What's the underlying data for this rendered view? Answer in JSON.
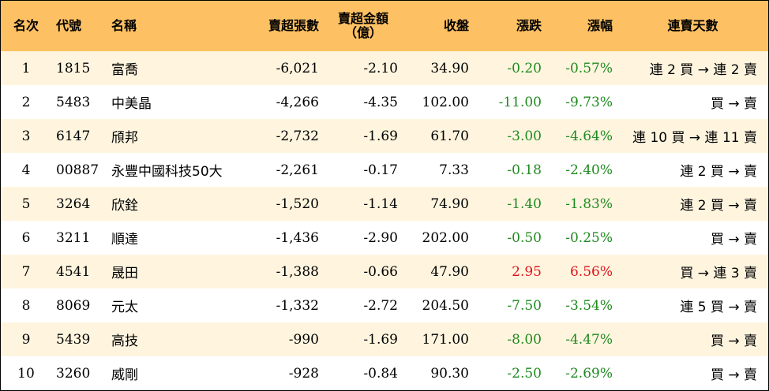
{
  "headers": {
    "rank": "名次",
    "code": "代號",
    "name": "名稱",
    "net_sell_lots": "賣超張數",
    "net_sell_amount_line1": "賣超金額",
    "net_sell_amount_line2": "（億）",
    "close": "收盤",
    "change": "漲跌",
    "change_pct": "漲幅",
    "streak": "連賣天數"
  },
  "colors": {
    "header_bg": "#fdc063",
    "odd_row_bg": "#fff5df",
    "even_row_bg": "#ffffff",
    "down": "#1f8a1f",
    "up": "#e0141e"
  },
  "rows": [
    {
      "rank": "1",
      "code": "1815",
      "name": "富喬",
      "lots": "-6,021",
      "amount": "-2.10",
      "close": "34.90",
      "change": "-0.20",
      "pct": "-0.57%",
      "streak": "連 2 買 → 連 2 賣",
      "dir": "down"
    },
    {
      "rank": "2",
      "code": "5483",
      "name": "中美晶",
      "lots": "-4,266",
      "amount": "-4.35",
      "close": "102.00",
      "change": "-11.00",
      "pct": "-9.73%",
      "streak": "買 → 賣",
      "dir": "down"
    },
    {
      "rank": "3",
      "code": "6147",
      "name": "頎邦",
      "lots": "-2,732",
      "amount": "-1.69",
      "close": "61.70",
      "change": "-3.00",
      "pct": "-4.64%",
      "streak": "連 10 買 → 連 11 賣",
      "dir": "down"
    },
    {
      "rank": "4",
      "code": "00887",
      "name": "永豐中國科技50大",
      "lots": "-2,261",
      "amount": "-0.17",
      "close": "7.33",
      "change": "-0.18",
      "pct": "-2.40%",
      "streak": "連 2 買 → 賣",
      "dir": "down"
    },
    {
      "rank": "5",
      "code": "3264",
      "name": "欣銓",
      "lots": "-1,520",
      "amount": "-1.14",
      "close": "74.90",
      "change": "-1.40",
      "pct": "-1.83%",
      "streak": "連 2 買 → 賣",
      "dir": "down"
    },
    {
      "rank": "6",
      "code": "3211",
      "name": "順達",
      "lots": "-1,436",
      "amount": "-2.90",
      "close": "202.00",
      "change": "-0.50",
      "pct": "-0.25%",
      "streak": "買 → 賣",
      "dir": "down"
    },
    {
      "rank": "7",
      "code": "4541",
      "name": "晟田",
      "lots": "-1,388",
      "amount": "-0.66",
      "close": "47.90",
      "change": "2.95",
      "pct": "6.56%",
      "streak": "買 → 連 3 賣",
      "dir": "up"
    },
    {
      "rank": "8",
      "code": "8069",
      "name": "元太",
      "lots": "-1,332",
      "amount": "-2.72",
      "close": "204.50",
      "change": "-7.50",
      "pct": "-3.54%",
      "streak": "連 5 買 → 賣",
      "dir": "down"
    },
    {
      "rank": "9",
      "code": "5439",
      "name": "高技",
      "lots": "-990",
      "amount": "-1.69",
      "close": "171.00",
      "change": "-8.00",
      "pct": "-4.47%",
      "streak": "買 → 賣",
      "dir": "down"
    },
    {
      "rank": "10",
      "code": "3260",
      "name": "威剛",
      "lots": "-928",
      "amount": "-0.84",
      "close": "90.30",
      "change": "-2.50",
      "pct": "-2.69%",
      "streak": "買 → 賣",
      "dir": "down"
    }
  ]
}
